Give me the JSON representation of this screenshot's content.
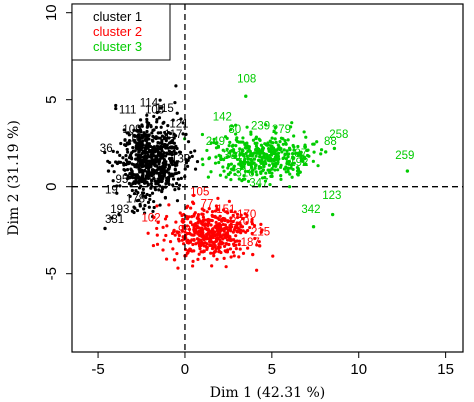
{
  "chart_data": {
    "type": "scatter",
    "xlabel": "Dim 1 (42.31 %)",
    "ylabel": "Dim 2 (31.19 %)",
    "xlim": [
      -6.5,
      16
    ],
    "ylim": [
      -9.5,
      10.5
    ],
    "x_ticks": [
      -5,
      0,
      5,
      10,
      15
    ],
    "y_ticks": [
      -5,
      0,
      5,
      10
    ],
    "reference_lines": {
      "x": 0,
      "y": 0,
      "style": "dashed"
    },
    "grid": false,
    "legend": {
      "placement": "top-left",
      "entries": [
        {
          "label": "cluster 1",
          "color": "#000000"
        },
        {
          "label": "cluster 2",
          "color": "#ff0000"
        },
        {
          "label": "cluster 3",
          "color": "#00cc00"
        }
      ]
    },
    "series": [
      {
        "name": "cluster 1",
        "color": "#000000",
        "cloud": {
          "cx": -1.9,
          "cy": 1.5,
          "sx": 0.95,
          "sy": 1.25,
          "n": 650,
          "seed": 11
        },
        "outliers": [
          [
            -4.6,
            -2.4
          ],
          [
            -4.2,
            -1.8
          ],
          [
            -4.4,
            0.9
          ],
          [
            -3.8,
            -1.6
          ]
        ],
        "labels": [
          {
            "text": "36",
            "x": -4.9,
            "y": 2.0
          },
          {
            "text": "331",
            "x": -4.6,
            "y": -2.1
          },
          {
            "text": "114",
            "x": -2.6,
            "y": 4.6
          },
          {
            "text": "111",
            "x": -3.8,
            "y": 4.2
          },
          {
            "text": "108",
            "x": -2.3,
            "y": 4.2
          },
          {
            "text": "115",
            "x": -1.7,
            "y": 4.3
          },
          {
            "text": "109",
            "x": -3.6,
            "y": 3.1
          },
          {
            "text": "19",
            "x": -4.6,
            "y": -0.4
          },
          {
            "text": "102",
            "x": -3.2,
            "y": 2.6
          },
          {
            "text": "139",
            "x": -0.8,
            "y": 1.4
          },
          {
            "text": "117",
            "x": -1.2,
            "y": 2.8
          },
          {
            "text": "104",
            "x": -2.2,
            "y": 0.4
          },
          {
            "text": "178",
            "x": -3.4,
            "y": -0.9
          },
          {
            "text": "121",
            "x": -0.9,
            "y": 3.4
          },
          {
            "text": "95",
            "x": -4.0,
            "y": 0.2
          },
          {
            "text": "96",
            "x": -2.8,
            "y": 1.1
          },
          {
            "text": "193",
            "x": -4.3,
            "y": -1.5
          }
        ]
      },
      {
        "name": "cluster 2",
        "color": "#ff0000",
        "cloud": {
          "cx": 1.4,
          "cy": -2.6,
          "sx": 1.25,
          "sy": 0.75,
          "n": 450,
          "seed": 23
        },
        "outliers": [
          [
            3.9,
            -3.9
          ],
          [
            4.3,
            -3.4
          ],
          [
            -0.6,
            -4.2
          ],
          [
            0.5,
            -0.5
          ]
        ],
        "labels": [
          {
            "text": "102",
            "x": -2.5,
            "y": -2.0
          },
          {
            "text": "151",
            "x": 1.8,
            "y": -1.5
          },
          {
            "text": "170",
            "x": 3.0,
            "y": -1.8
          },
          {
            "text": "215",
            "x": 3.8,
            "y": -2.8
          },
          {
            "text": "187",
            "x": 3.2,
            "y": -3.4
          },
          {
            "text": "105",
            "x": 0.3,
            "y": -0.5
          },
          {
            "text": "220",
            "x": 2.6,
            "y": -2.2
          },
          {
            "text": "135",
            "x": 1.2,
            "y": -3.0
          },
          {
            "text": "98",
            "x": -0.4,
            "y": -2.7
          },
          {
            "text": "77",
            "x": 0.9,
            "y": -1.2
          }
        ]
      },
      {
        "name": "cluster 3",
        "color": "#00cc00",
        "cloud": {
          "cx": 4.4,
          "cy": 1.8,
          "sx": 1.5,
          "sy": 0.7,
          "n": 420,
          "seed": 37
        },
        "outliers": [
          [
            3.5,
            5.2
          ],
          [
            12.8,
            0.9
          ],
          [
            8.5,
            -1.6
          ],
          [
            7.4,
            -2.3
          ],
          [
            8.6,
            2.2
          ],
          [
            8.1,
            2.0
          ],
          [
            6.2,
            1.9
          ],
          [
            6.9,
            2.3
          ]
        ],
        "labels": [
          {
            "text": "108",
            "x": 3.0,
            "y": 6.0
          },
          {
            "text": "259",
            "x": 12.1,
            "y": 1.6
          },
          {
            "text": "258",
            "x": 8.3,
            "y": 2.8
          },
          {
            "text": "88",
            "x": 8.0,
            "y": 2.4
          },
          {
            "text": "123",
            "x": 7.9,
            "y": -0.7
          },
          {
            "text": "342",
            "x": 6.7,
            "y": -1.5
          },
          {
            "text": "142",
            "x": 1.6,
            "y": 3.8
          },
          {
            "text": "249",
            "x": 1.2,
            "y": 2.4
          },
          {
            "text": "239",
            "x": 3.8,
            "y": 3.3
          },
          {
            "text": "279",
            "x": 5.0,
            "y": 3.1
          },
          {
            "text": "192",
            "x": 6.0,
            "y": 1.2
          },
          {
            "text": "87",
            "x": 6.3,
            "y": 1.7
          },
          {
            "text": "301",
            "x": 2.2,
            "y": 1.6
          },
          {
            "text": "80",
            "x": 2.5,
            "y": 3.1
          },
          {
            "text": "347",
            "x": 3.7,
            "y": 0.0
          },
          {
            "text": "316",
            "x": 2.9,
            "y": 0.6
          }
        ]
      }
    ]
  }
}
